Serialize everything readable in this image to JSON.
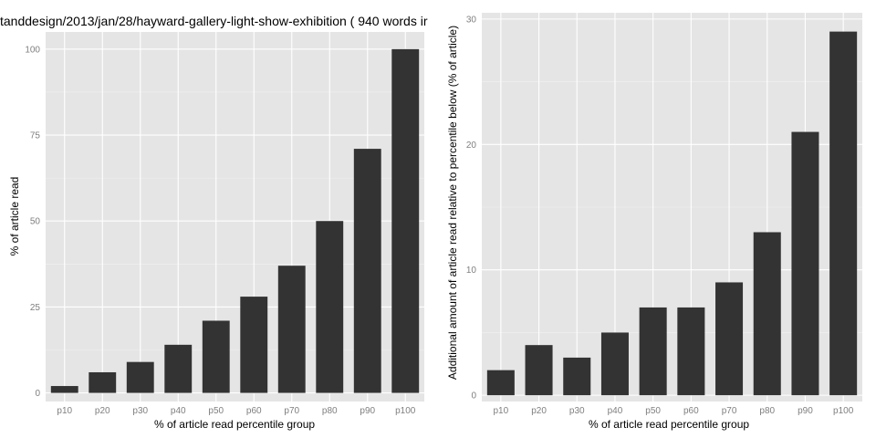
{
  "chart_data": [
    {
      "type": "bar",
      "title": "tanddesign/2013/jan/28/hayward-gallery-light-show-exhibition ( 940 words ir",
      "xlabel": "% of article read percentile group",
      "ylabel": "% of article read",
      "categories": [
        "p10",
        "p20",
        "p30",
        "p40",
        "p50",
        "p60",
        "p70",
        "p80",
        "p90",
        "p100"
      ],
      "values": [
        2,
        6,
        9,
        14,
        21,
        28,
        37,
        50,
        71,
        100
      ],
      "ylim": [
        -2.5,
        105
      ],
      "yticks": [
        0,
        25,
        50,
        75,
        100
      ],
      "grid": true
    },
    {
      "type": "bar",
      "title": "",
      "xlabel": "% of article read percentile group",
      "ylabel": "Additional amount of article read relative to percentile below (% of article)",
      "categories": [
        "p10",
        "p20",
        "p30",
        "p40",
        "p50",
        "p60",
        "p70",
        "p80",
        "p90",
        "p100"
      ],
      "values": [
        2,
        4,
        3,
        5,
        7,
        7,
        9,
        13,
        21,
        29
      ],
      "ylim": [
        -0.5,
        30.5
      ],
      "yticks": [
        0,
        10,
        20,
        30
      ],
      "grid": true
    }
  ],
  "colors": {
    "panel_bg": "#e5e5e5",
    "grid_major": "#ffffff",
    "grid_minor": "#f2f2f2",
    "bar_fill": "#333333",
    "tick_text": "#7f7f7f",
    "text": "#000000"
  }
}
